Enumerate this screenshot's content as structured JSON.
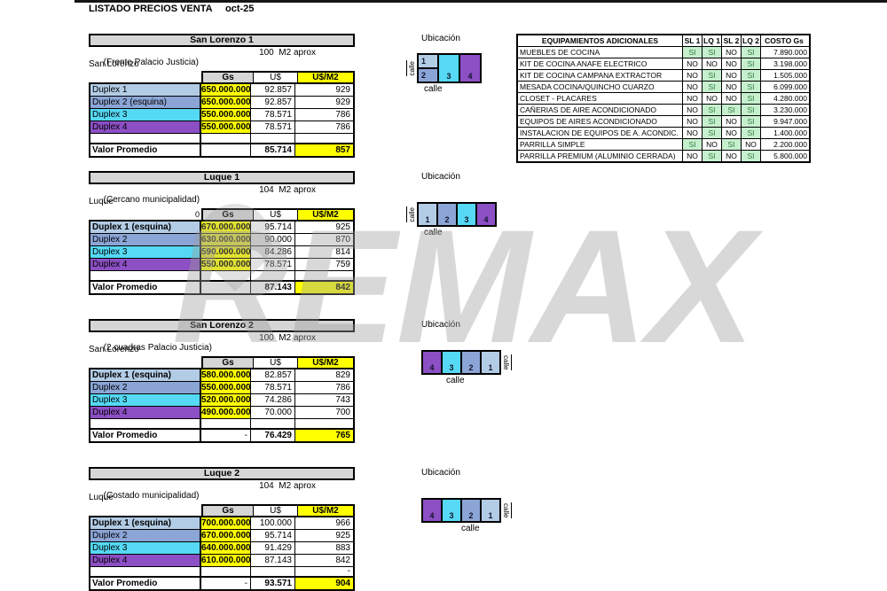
{
  "header": {
    "title": "LISTADO PRECIOS VENTA",
    "date": "oct-25"
  },
  "watermark": {
    "text": "REMAX"
  },
  "colors": {
    "duplex1": "#b3cce6",
    "duplex2": "#8ba5d6",
    "duplex3": "#55d9f4",
    "duplex4": "#8c4fc4",
    "highlight_yellow": "#ffff00",
    "header_gray": "#d6d6d6",
    "si_green_bg": "#c6efce",
    "si_green_text": "#2f7d3b"
  },
  "sections": [
    {
      "name": "San Lorenzo 1",
      "location_note": "(Frente Palacio Justicia)",
      "area": "100  M2 aprox",
      "city": "San Lorenzo",
      "pre_header": "",
      "columns": {
        "gs": "Gs",
        "us": "U$",
        "usm2": "U$/M2"
      },
      "rows": [
        {
          "label": "Duplex 1",
          "unit": "1",
          "bold": false,
          "gs": "650.000.000",
          "us": "92.857",
          "usm2": "929"
        },
        {
          "label": "Duplex 2 (esquina)",
          "unit": "2",
          "bold": false,
          "gs": "650.000.000",
          "us": "92.857",
          "usm2": "929"
        },
        {
          "label": "Duplex 3",
          "unit": "3",
          "bold": false,
          "gs": "550.000.000",
          "us": "78.571",
          "usm2": "786"
        },
        {
          "label": "Duplex 4",
          "unit": "4",
          "bold": false,
          "gs": "550.000.000",
          "us": "78.571",
          "usm2": "786"
        }
      ],
      "spacer": {
        "gs": "",
        "us": "",
        "usm2": ""
      },
      "average": {
        "label": "Valor Promedio",
        "gs": "",
        "us": "85.714",
        "usm2": "857"
      },
      "ubicacion": {
        "title": "Ubicación",
        "layout": "corner",
        "cells": [
          "1",
          "2",
          "3",
          "4"
        ],
        "calle_vertical": "calle",
        "calle_bottom": "calle",
        "calle_side": "left",
        "bottom_align": "left"
      }
    },
    {
      "name": "Luque 1",
      "location_note": "(Cercano municipalidad)",
      "area": "104  M2 aprox",
      "city": "Luque",
      "pre_header": "0",
      "columns": {
        "gs": "Gs",
        "us": "U$",
        "usm2": "U$/M2"
      },
      "rows": [
        {
          "label": "Duplex 1 (esquina)",
          "unit": "1",
          "bold": true,
          "gs": "670.000.000",
          "us": "95.714",
          "usm2": "925"
        },
        {
          "label": "Duplex 2",
          "unit": "2",
          "bold": false,
          "gs": "630.000.000",
          "us": "90.000",
          "usm2": "870"
        },
        {
          "label": "Duplex 3",
          "unit": "3",
          "bold": false,
          "gs": "590.000.000",
          "us": "84.286",
          "usm2": "814"
        },
        {
          "label": "Duplex 4",
          "unit": "4",
          "bold": false,
          "gs": "550.000.000",
          "us": "78.571",
          "usm2": "759"
        }
      ],
      "spacer": {
        "gs": "",
        "us": "",
        "usm2": ""
      },
      "average": {
        "label": "Valor Promedio",
        "gs": "",
        "us": "87.143",
        "usm2": "842"
      },
      "ubicacion": {
        "title": "Ubicación",
        "layout": "row",
        "cells": [
          "1",
          "2",
          "3",
          "4"
        ],
        "calle_vertical": "calle",
        "calle_bottom": "calle",
        "calle_side": "left",
        "bottom_align": "left"
      }
    },
    {
      "name": "San Lorenzo 2",
      "location_note": "(2 cuadras Palacio Justicia)",
      "area": "100  M2 aprox",
      "city": "San Lorenzo",
      "pre_header": "",
      "columns": {
        "gs": "Gs",
        "us": "U$",
        "usm2": "U$/M2"
      },
      "rows": [
        {
          "label": "Duplex 1 (esquina)",
          "unit": "1",
          "bold": true,
          "gs": "580.000.000",
          "us": "82.857",
          "usm2": "829"
        },
        {
          "label": "Duplex 2",
          "unit": "2",
          "bold": false,
          "gs": "550.000.000",
          "us": "78.571",
          "usm2": "786"
        },
        {
          "label": "Duplex 3",
          "unit": "3",
          "bold": false,
          "gs": "520.000.000",
          "us": "74.286",
          "usm2": "743"
        },
        {
          "label": "Duplex 4",
          "unit": "4",
          "bold": false,
          "gs": "490.000.000",
          "us": "70.000",
          "usm2": "700"
        }
      ],
      "spacer": {
        "gs": "",
        "us": "",
        "usm2": ""
      },
      "average": {
        "label": "Valor Promedio",
        "gs": "-",
        "us": "76.429",
        "usm2": "765"
      },
      "ubicacion": {
        "title": "Ubicación",
        "layout": "row",
        "cells": [
          "4",
          "3",
          "2",
          "1"
        ],
        "calle_vertical": "calle",
        "calle_bottom": "calle",
        "calle_side": "right",
        "bottom_align": "center"
      }
    },
    {
      "name": "Luque 2",
      "location_note": "(Costado municipalidad)",
      "area": "104  M2 aprox",
      "city": "Luque",
      "pre_header": "",
      "columns": {
        "gs": "Gs",
        "us": "U$",
        "usm2": "U$/M2"
      },
      "rows": [
        {
          "label": "Duplex 1 (esquina)",
          "unit": "1",
          "bold": true,
          "gs": "700.000.000",
          "us": "100.000",
          "usm2": "966"
        },
        {
          "label": "Duplex 2",
          "unit": "2",
          "bold": false,
          "gs": "670.000.000",
          "us": "95.714",
          "usm2": "925"
        },
        {
          "label": "Duplex 3",
          "unit": "3",
          "bold": false,
          "gs": "640.000.000",
          "us": "91.429",
          "usm2": "883"
        },
        {
          "label": "Duplex 4",
          "unit": "4",
          "bold": false,
          "gs": "610.000.000",
          "us": "87.143",
          "usm2": "842"
        }
      ],
      "spacer": {
        "gs": "",
        "us": "",
        "usm2": "-"
      },
      "average": {
        "label": "Valor Promedio",
        "gs": "-",
        "us": "93.571",
        "usm2": "904"
      },
      "ubicacion": {
        "title": "Ubicación",
        "layout": "row",
        "cells": [
          "4",
          "3",
          "2",
          "1"
        ],
        "calle_vertical": "calle",
        "calle_bottom": "calle",
        "calle_side": "right",
        "bottom_align": "right"
      }
    }
  ],
  "equipamientos": {
    "title": "EQUIPAMIENTOS ADICIONALES",
    "columns": [
      "SL 1",
      "LQ 1",
      "SL 2",
      "LQ 2",
      "COSTO Gs"
    ],
    "rows": [
      {
        "name": "MUEBLES DE COCINA",
        "values": [
          "SI",
          "SI",
          "NO",
          "SI"
        ],
        "cost": "7.890.000"
      },
      {
        "name": "KIT DE COCINA ANAFE ELECTRICO",
        "values": [
          "NO",
          "NO",
          "NO",
          "SI"
        ],
        "cost": "3.198.000"
      },
      {
        "name": "KIT DE COCINA CAMPANA EXTRACTOR",
        "values": [
          "NO",
          "SI",
          "NO",
          "SI"
        ],
        "cost": "1.505.000"
      },
      {
        "name": "MESADA COCINA/QUINCHO CUARZO",
        "values": [
          "NO",
          "SI",
          "NO",
          "SI"
        ],
        "cost": "6.099.000"
      },
      {
        "name": "CLOSET - PLACARES",
        "values": [
          "NO",
          "NO",
          "NO",
          "SI"
        ],
        "cost": "4.280.000"
      },
      {
        "name": "CAÑERIAS DE AIRE ACONDICIONADO",
        "values": [
          "NO",
          "SI",
          "SI",
          "SI"
        ],
        "cost": "3.230.000"
      },
      {
        "name": "EQUIPOS DE AIRES ACONDICIONADO",
        "values": [
          "NO",
          "SI",
          "NO",
          "SI"
        ],
        "cost": "9.947.000"
      },
      {
        "name": "INSTALACION DE EQUIPOS DE A. ACONDIC.",
        "values": [
          "NO",
          "SI",
          "NO",
          "SI"
        ],
        "cost": "1.400.000"
      },
      {
        "name": "PARRILLA SIMPLE",
        "values": [
          "SI",
          "NO",
          "SI",
          "NO"
        ],
        "cost": "2.200.000"
      },
      {
        "name": "PARRILLA PREMIUM (ALUMINIO CERRADA)",
        "values": [
          "NO",
          "SI",
          "NO",
          "SI"
        ],
        "cost": "5.800.000"
      }
    ]
  }
}
